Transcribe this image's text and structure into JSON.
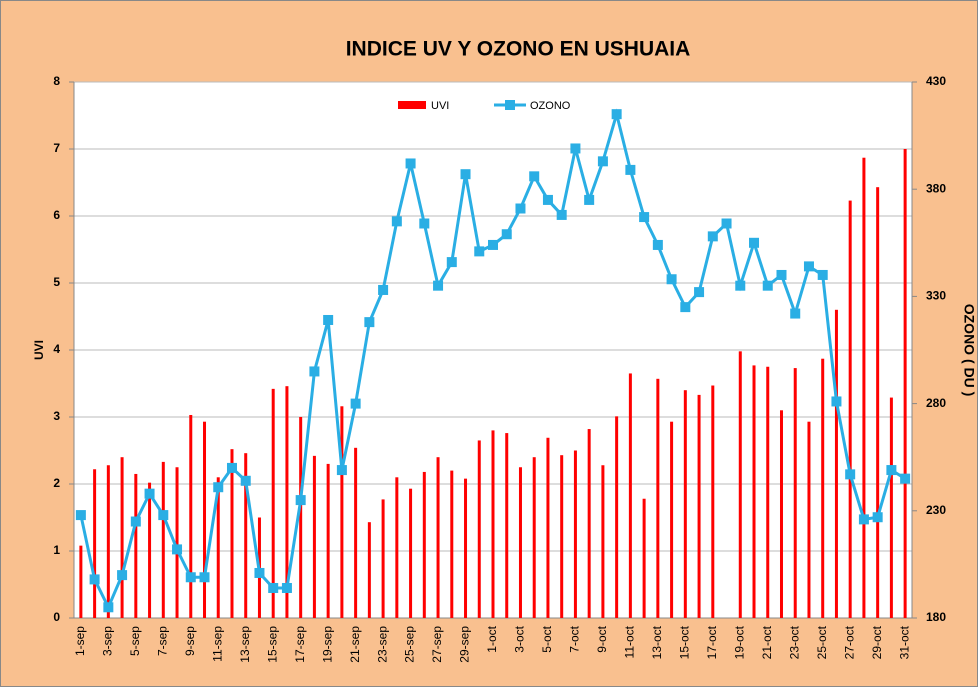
{
  "chart_data": {
    "type": "bar_line",
    "title": "INDICE UV Y OZONO EN USHUAIA",
    "y_label": "UVI",
    "y2_label": "OZONO ( DU )",
    "categories": [
      "1-sep",
      null,
      "3-sep",
      null,
      "5-sep",
      null,
      "7-sep",
      null,
      "9-sep",
      null,
      "11-sep",
      null,
      "13-sep",
      null,
      "15-sep",
      null,
      "17-sep",
      null,
      "19-sep",
      null,
      "21-sep",
      null,
      "23-sep",
      null,
      "25-sep",
      null,
      "27-sep",
      null,
      "29-sep",
      null,
      "1-oct",
      null,
      "3-oct",
      null,
      "5-oct",
      null,
      "7-oct",
      null,
      "9-oct",
      null,
      "11-oct",
      null,
      "13-oct",
      null,
      "15-oct",
      null,
      "17-oct",
      null,
      "19-oct",
      null,
      "21-oct",
      null,
      "23-oct",
      null,
      "25-oct",
      null,
      "27-oct",
      null,
      "29-oct",
      null,
      "31-oct"
    ],
    "series": [
      {
        "name": "UVI",
        "kind": "bar",
        "color": "#ff0000",
        "values": [
          1.08,
          2.22,
          2.28,
          2.4,
          2.15,
          2.02,
          2.33,
          2.25,
          3.03,
          2.93,
          2.1,
          2.52,
          2.46,
          1.5,
          3.42,
          3.46,
          3.0,
          2.42,
          2.3,
          3.16,
          2.54,
          1.43,
          1.77,
          2.1,
          1.93,
          2.18,
          2.4,
          2.2,
          2.08,
          2.65,
          2.8,
          2.76,
          2.25,
          2.4,
          2.69,
          2.43,
          2.5,
          2.82,
          2.28,
          3.01,
          3.65,
          1.78,
          3.57,
          2.93,
          3.4,
          3.33,
          3.47,
          null,
          3.98,
          3.77,
          3.75,
          3.1,
          3.73,
          2.93,
          3.87,
          4.6,
          6.23,
          6.87,
          6.43,
          3.29,
          7.0
        ]
      },
      {
        "name": "OZONO",
        "kind": "line",
        "axis": "y2",
        "color": "#2aaee4",
        "values": [
          228,
          198,
          185,
          200,
          225,
          238,
          228,
          212,
          199,
          199,
          241,
          250,
          244,
          201,
          194,
          194,
          235,
          295,
          319,
          249,
          280,
          318,
          333,
          365,
          392,
          364,
          335,
          346,
          387,
          351,
          354,
          359,
          371,
          386,
          375,
          368,
          399,
          375,
          393,
          415,
          389,
          367,
          354,
          338,
          325,
          332,
          358,
          364,
          335,
          355,
          335,
          340,
          322,
          344,
          340,
          281,
          247,
          226,
          227,
          249,
          245
        ]
      }
    ],
    "ylim": [
      0,
      8
    ],
    "yticks": [
      0,
      1,
      2,
      3,
      4,
      5,
      6,
      7,
      8
    ],
    "y2lim": [
      180,
      430
    ],
    "y2ticks": [
      180,
      230,
      280,
      330,
      380,
      430
    ],
    "grid": true,
    "legend": "top"
  }
}
